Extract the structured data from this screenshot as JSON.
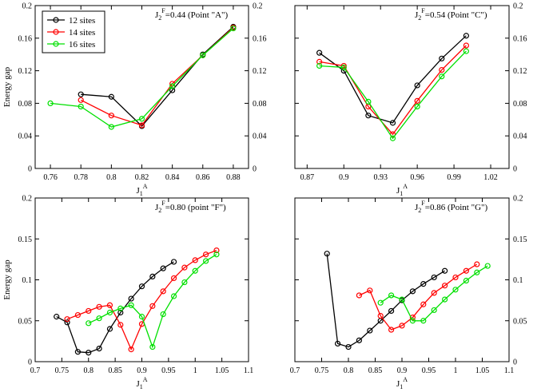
{
  "chart_data": [
    {
      "type": "line",
      "annotation": {
        "base": "J",
        "sub": "2",
        "sup": "F",
        "rest": "=0.44  (Point  \"A\")"
      },
      "xlabel": {
        "base": "J",
        "sub": "1",
        "sup": "A"
      },
      "ylabel": "Energy gap",
      "xlim": [
        0.75,
        0.89
      ],
      "ylim": [
        0,
        0.2
      ],
      "xticks": [
        0.76,
        0.78,
        0.8,
        0.82,
        0.84,
        0.86,
        0.88
      ],
      "xtick_labels": [
        "0.76",
        "0.78",
        "0.8",
        "0.82",
        "0.84",
        "0.86",
        "0.88"
      ],
      "yticks": [
        0,
        0.04,
        0.08,
        0.12,
        0.16,
        0.2
      ],
      "ytick_labels": [
        "0",
        "0.04",
        "0.08",
        "0.12",
        "0.16",
        "0.2"
      ],
      "y_axis_side": "both",
      "legend": {
        "position": "top-left",
        "entries": [
          "12 sites",
          "14 sites",
          "16 sites"
        ]
      },
      "series": [
        {
          "name": "12 sites",
          "color": "#000000",
          "x": [
            0.78,
            0.8,
            0.82,
            0.84,
            0.86,
            0.88
          ],
          "y": [
            0.091,
            0.088,
            0.052,
            0.096,
            0.14,
            0.174
          ]
        },
        {
          "name": "14 sites",
          "color": "#ff0000",
          "x": [
            0.78,
            0.8,
            0.82,
            0.84,
            0.86,
            0.88
          ],
          "y": [
            0.084,
            0.065,
            0.053,
            0.104,
            0.139,
            0.173
          ]
        },
        {
          "name": "16 sites",
          "color": "#00e000",
          "x": [
            0.76,
            0.78,
            0.8,
            0.82,
            0.84,
            0.86,
            0.88
          ],
          "y": [
            0.08,
            0.076,
            0.051,
            0.061,
            0.101,
            0.139,
            0.172
          ]
        }
      ]
    },
    {
      "type": "line",
      "annotation": {
        "base": "J",
        "sub": "2",
        "sup": "F",
        "rest": "=0.54  (Point  \"C\")"
      },
      "xlabel": {
        "base": "J",
        "sub": "1",
        "sup": "A"
      },
      "ylabel": "",
      "xlim": [
        0.86,
        1.035
      ],
      "ylim": [
        0,
        0.2
      ],
      "xticks": [
        0.87,
        0.9,
        0.93,
        0.96,
        0.99,
        1.02
      ],
      "xtick_labels": [
        "0.87",
        "0.9",
        "0.93",
        "0.96",
        "0.99",
        "1.02"
      ],
      "yticks": [
        0,
        0.04,
        0.08,
        0.12,
        0.16,
        0.2
      ],
      "ytick_labels": [
        "0",
        "0.04",
        "0.08",
        "0.12",
        "0.16",
        "0.2"
      ],
      "y_axis_side": "right",
      "series": [
        {
          "name": "12 sites",
          "color": "#000000",
          "x": [
            0.88,
            0.9,
            0.92,
            0.94,
            0.96,
            0.98,
            1.0
          ],
          "y": [
            0.142,
            0.12,
            0.065,
            0.056,
            0.102,
            0.135,
            0.163
          ]
        },
        {
          "name": "14 sites",
          "color": "#ff0000",
          "x": [
            0.88,
            0.9,
            0.92,
            0.94,
            0.96,
            0.98,
            1.0
          ],
          "y": [
            0.131,
            0.126,
            0.076,
            0.042,
            0.083,
            0.121,
            0.151
          ]
        },
        {
          "name": "16 sites",
          "color": "#00e000",
          "x": [
            0.88,
            0.9,
            0.92,
            0.94,
            0.96,
            0.98,
            1.0
          ],
          "y": [
            0.126,
            0.124,
            0.082,
            0.037,
            0.076,
            0.113,
            0.144
          ]
        }
      ]
    },
    {
      "type": "line",
      "annotation": {
        "base": "J",
        "sub": "2",
        "sup": "F",
        "rest": "=0.80  (point  \"F\")"
      },
      "xlabel": {
        "base": "J",
        "sub": "1",
        "sup": "A"
      },
      "ylabel": "Energy gap",
      "xlim": [
        0.7,
        1.1
      ],
      "ylim": [
        0,
        0.2
      ],
      "xticks": [
        0.7,
        0.75,
        0.8,
        0.85,
        0.9,
        0.95,
        1.0,
        1.05,
        1.1
      ],
      "xtick_labels": [
        "0.7",
        "0.75",
        "0.8",
        "0.85",
        "0.9",
        "0.95",
        "1",
        "1.05",
        "1.1"
      ],
      "yticks": [
        0,
        0.05,
        0.1,
        0.15,
        0.2
      ],
      "ytick_labels": [
        "0",
        "0.05",
        "0.1",
        "0.15",
        "0.2"
      ],
      "y_axis_side": "left",
      "series": [
        {
          "name": "12 sites",
          "color": "#000000",
          "x": [
            0.74,
            0.76,
            0.78,
            0.8,
            0.82,
            0.84,
            0.86,
            0.88,
            0.9,
            0.92,
            0.94,
            0.96
          ],
          "y": [
            0.055,
            0.048,
            0.012,
            0.011,
            0.016,
            0.04,
            0.06,
            0.077,
            0.092,
            0.104,
            0.114,
            0.122
          ]
        },
        {
          "name": "14 sites",
          "color": "#ff0000",
          "x": [
            0.76,
            0.78,
            0.8,
            0.82,
            0.84,
            0.86,
            0.88,
            0.9,
            0.92,
            0.94,
            0.96,
            0.98,
            1.0,
            1.02,
            1.04
          ],
          "y": [
            0.052,
            0.057,
            0.062,
            0.067,
            0.069,
            0.045,
            0.015,
            0.046,
            0.068,
            0.086,
            0.102,
            0.115,
            0.124,
            0.131,
            0.136
          ]
        },
        {
          "name": "16 sites",
          "color": "#00e000",
          "x": [
            0.8,
            0.82,
            0.84,
            0.86,
            0.88,
            0.9,
            0.92,
            0.94,
            0.96,
            0.98,
            1.0,
            1.02,
            1.04
          ],
          "y": [
            0.047,
            0.053,
            0.06,
            0.065,
            0.069,
            0.055,
            0.018,
            0.058,
            0.08,
            0.097,
            0.111,
            0.123,
            0.131
          ]
        }
      ]
    },
    {
      "type": "line",
      "annotation": {
        "base": "J",
        "sub": "2",
        "sup": "F",
        "rest": "=0.86  (Point  \"G\")"
      },
      "xlabel": {
        "base": "J",
        "sub": "1",
        "sup": "A"
      },
      "ylabel": "",
      "xlim": [
        0.7,
        1.1
      ],
      "ylim": [
        0,
        0.2
      ],
      "xticks": [
        0.7,
        0.75,
        0.8,
        0.85,
        0.9,
        0.95,
        1.0,
        1.05,
        1.1
      ],
      "xtick_labels": [
        "0.7",
        "0.75",
        "0.8",
        "0.85",
        "0.9",
        "0.95",
        "1",
        "1.05",
        "1.1"
      ],
      "yticks": [
        0,
        0.05,
        0.1,
        0.15,
        0.2
      ],
      "ytick_labels": [
        "0",
        "0.05",
        "0.1",
        "0.15",
        "0.2"
      ],
      "y_axis_side": "right",
      "series": [
        {
          "name": "12 sites",
          "color": "#000000",
          "x": [
            0.76,
            0.78,
            0.8,
            0.82,
            0.84,
            0.86,
            0.88,
            0.9,
            0.92,
            0.94,
            0.96,
            0.98
          ],
          "y": [
            0.132,
            0.022,
            0.018,
            0.026,
            0.038,
            0.05,
            0.062,
            0.075,
            0.086,
            0.095,
            0.103,
            0.111
          ]
        },
        {
          "name": "14 sites",
          "color": "#ff0000",
          "x": [
            0.82,
            0.84,
            0.86,
            0.88,
            0.9,
            0.92,
            0.94,
            0.96,
            0.98,
            1.0,
            1.02,
            1.04
          ],
          "y": [
            0.081,
            0.087,
            0.056,
            0.039,
            0.044,
            0.054,
            0.07,
            0.084,
            0.093,
            0.103,
            0.111,
            0.119
          ]
        },
        {
          "name": "16 sites",
          "color": "#00e000",
          "x": [
            0.86,
            0.88,
            0.9,
            0.92,
            0.94,
            0.96,
            0.98,
            1.0,
            1.02,
            1.04,
            1.06
          ],
          "y": [
            0.072,
            0.081,
            0.076,
            0.05,
            0.05,
            0.063,
            0.076,
            0.088,
            0.099,
            0.109,
            0.117
          ]
        }
      ]
    }
  ]
}
